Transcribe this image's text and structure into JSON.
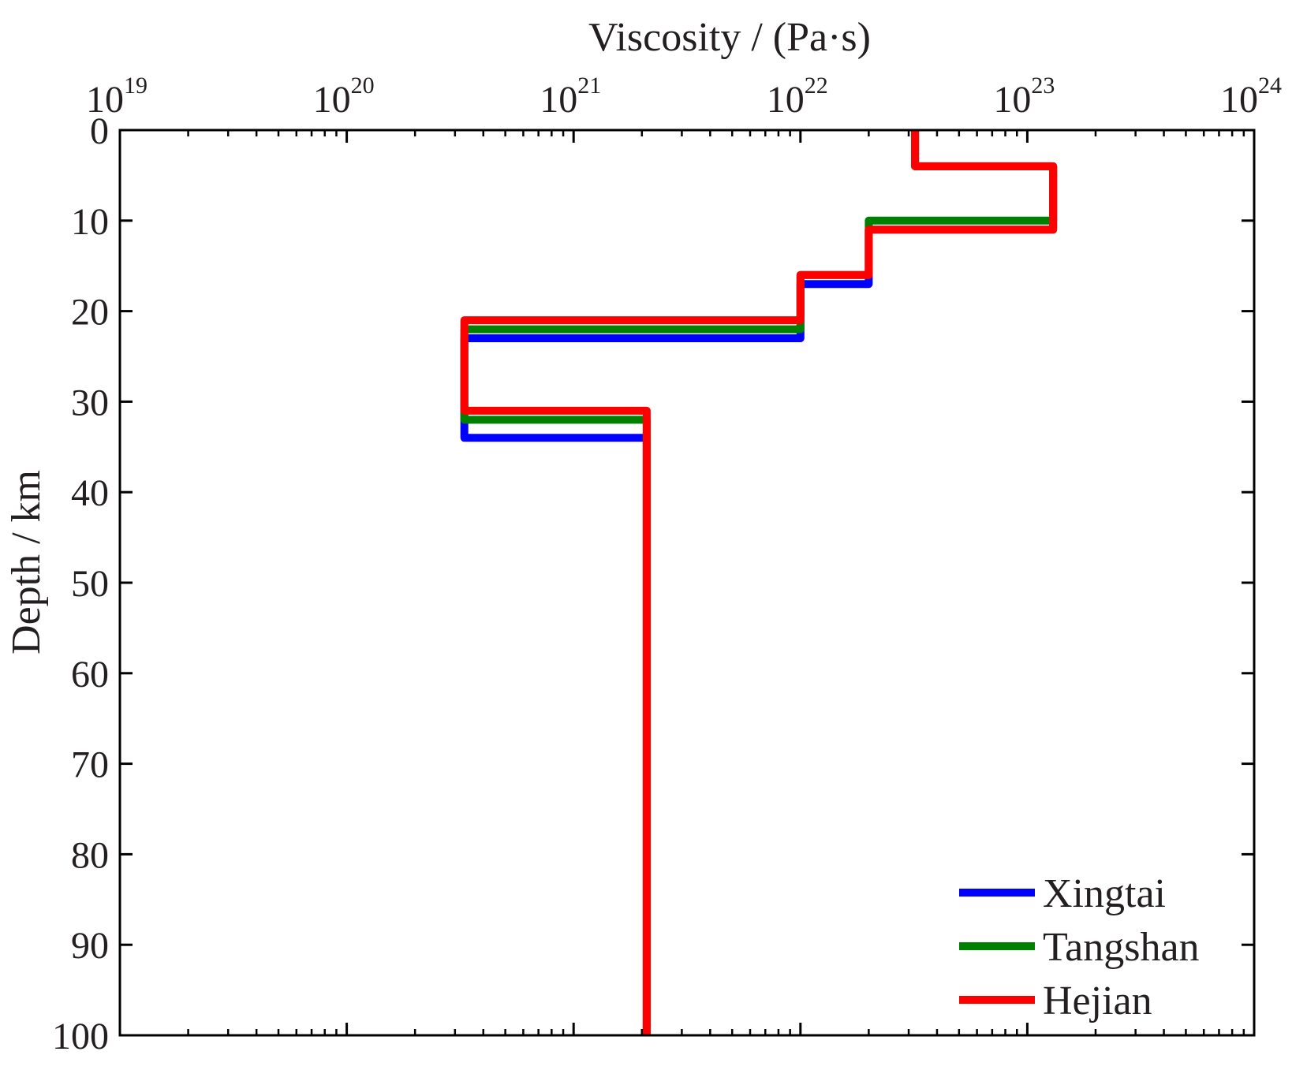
{
  "chart_data": {
    "type": "line",
    "title": "",
    "xlabel": "Viscosity / (Pa·s)",
    "ylabel": "Depth / km",
    "xscale": "log",
    "xlim": [
      1e+19,
      1e+24
    ],
    "ylim": [
      0,
      100
    ],
    "y_inverted": true,
    "x_axis_position": "top",
    "x_ticks": [
      {
        "base": "10",
        "exp": "19",
        "value": 1e+19
      },
      {
        "base": "10",
        "exp": "20",
        "value": 1e+20
      },
      {
        "base": "10",
        "exp": "21",
        "value": 1e+21
      },
      {
        "base": "10",
        "exp": "22",
        "value": 1e+22
      },
      {
        "base": "10",
        "exp": "23",
        "value": 1e+23
      },
      {
        "base": "10",
        "exp": "24",
        "value": 1e+24
      }
    ],
    "y_ticks": [
      "0",
      "10",
      "20",
      "30",
      "40",
      "50",
      "60",
      "70",
      "80",
      "90",
      "100"
    ],
    "grid": false,
    "legend_position": "bottom-right",
    "series": [
      {
        "name": "Xingtai",
        "color": "#0000ff",
        "points": [
          {
            "viscosity": 3.2e+22,
            "depth": 0
          },
          {
            "viscosity": 3.2e+22,
            "depth": 4
          },
          {
            "viscosity": 1.3e+23,
            "depth": 4
          },
          {
            "viscosity": 1.3e+23,
            "depth": 11
          },
          {
            "viscosity": 2e+22,
            "depth": 11
          },
          {
            "viscosity": 2e+22,
            "depth": 17
          },
          {
            "viscosity": 1e+22,
            "depth": 17
          },
          {
            "viscosity": 1e+22,
            "depth": 23
          },
          {
            "viscosity": 3.3e+20,
            "depth": 23
          },
          {
            "viscosity": 3.3e+20,
            "depth": 34
          },
          {
            "viscosity": 2.1e+21,
            "depth": 34
          },
          {
            "viscosity": 2.1e+21,
            "depth": 100
          }
        ]
      },
      {
        "name": "Tangshan",
        "color": "#008000",
        "points": [
          {
            "viscosity": 3.2e+22,
            "depth": 0
          },
          {
            "viscosity": 3.2e+22,
            "depth": 4
          },
          {
            "viscosity": 1.3e+23,
            "depth": 4
          },
          {
            "viscosity": 1.3e+23,
            "depth": 10
          },
          {
            "viscosity": 2e+22,
            "depth": 10
          },
          {
            "viscosity": 2e+22,
            "depth": 16
          },
          {
            "viscosity": 1e+22,
            "depth": 16
          },
          {
            "viscosity": 1e+22,
            "depth": 22
          },
          {
            "viscosity": 3.3e+20,
            "depth": 22
          },
          {
            "viscosity": 3.3e+20,
            "depth": 32
          },
          {
            "viscosity": 2.1e+21,
            "depth": 32
          },
          {
            "viscosity": 2.1e+21,
            "depth": 100
          }
        ]
      },
      {
        "name": "Hejian",
        "color": "#ff0000",
        "points": [
          {
            "viscosity": 3.2e+22,
            "depth": 0
          },
          {
            "viscosity": 3.2e+22,
            "depth": 4
          },
          {
            "viscosity": 1.3e+23,
            "depth": 4
          },
          {
            "viscosity": 1.3e+23,
            "depth": 11
          },
          {
            "viscosity": 2e+22,
            "depth": 11
          },
          {
            "viscosity": 2e+22,
            "depth": 16
          },
          {
            "viscosity": 1e+22,
            "depth": 16
          },
          {
            "viscosity": 1e+22,
            "depth": 21
          },
          {
            "viscosity": 3.3e+20,
            "depth": 21
          },
          {
            "viscosity": 3.3e+20,
            "depth": 31
          },
          {
            "viscosity": 2.1e+21,
            "depth": 31
          },
          {
            "viscosity": 2.1e+21,
            "depth": 100
          }
        ]
      }
    ]
  }
}
